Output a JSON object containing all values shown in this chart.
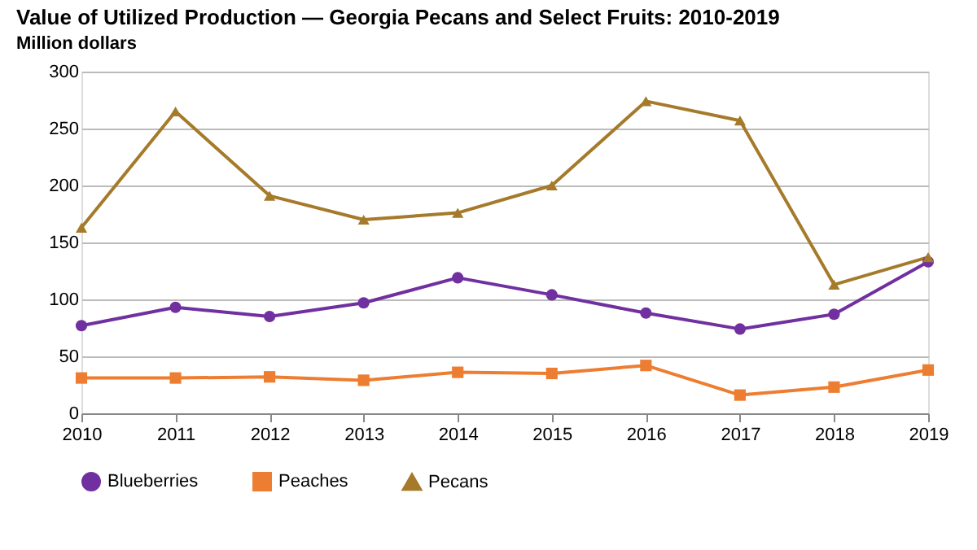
{
  "chart_data": {
    "type": "line",
    "title": "Value of Utilized Production — Georgia Pecans and Select Fruits: 2010-2019",
    "ylabel": "Million dollars",
    "x": [
      2010,
      2011,
      2012,
      2013,
      2014,
      2015,
      2016,
      2017,
      2018,
      2019
    ],
    "xlim": [
      2010,
      2019
    ],
    "xticks": [
      2010,
      2011,
      2012,
      2013,
      2014,
      2015,
      2016,
      2017,
      2018,
      2019
    ],
    "ylim": [
      0,
      300
    ],
    "yticks": [
      0,
      50,
      100,
      150,
      200,
      250,
      300
    ],
    "grid": "y",
    "legend": "bottom",
    "series": [
      {
        "name": "Blueberries",
        "color": "#7030a0",
        "marker": "circle",
        "values": [
          77,
          93,
          85,
          97,
          119,
          104,
          88,
          74,
          87,
          133
        ]
      },
      {
        "name": "Peaches",
        "color": "#ed7d31",
        "marker": "square",
        "values": [
          31,
          31,
          32,
          29,
          36,
          35,
          42,
          16,
          23,
          38
        ]
      },
      {
        "name": "Pecans",
        "color": "#a57a2a",
        "marker": "triangle",
        "values": [
          163,
          265,
          191,
          170,
          176,
          200,
          274,
          257,
          113,
          137
        ]
      }
    ]
  }
}
